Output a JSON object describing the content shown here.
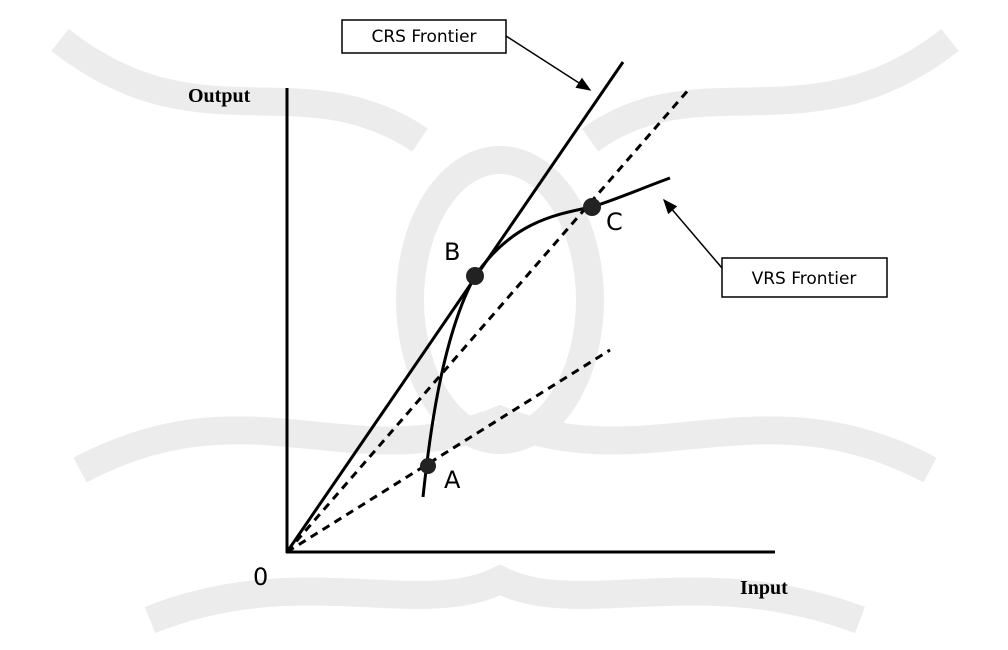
{
  "axes": {
    "y_label": "Output",
    "x_label": "Input",
    "origin": "0"
  },
  "points": [
    {
      "label": "A"
    },
    {
      "label": "B"
    },
    {
      "label": "C"
    }
  ],
  "callouts": {
    "crs": "CRS Frontier",
    "vrs": "VRS Frontier"
  }
}
